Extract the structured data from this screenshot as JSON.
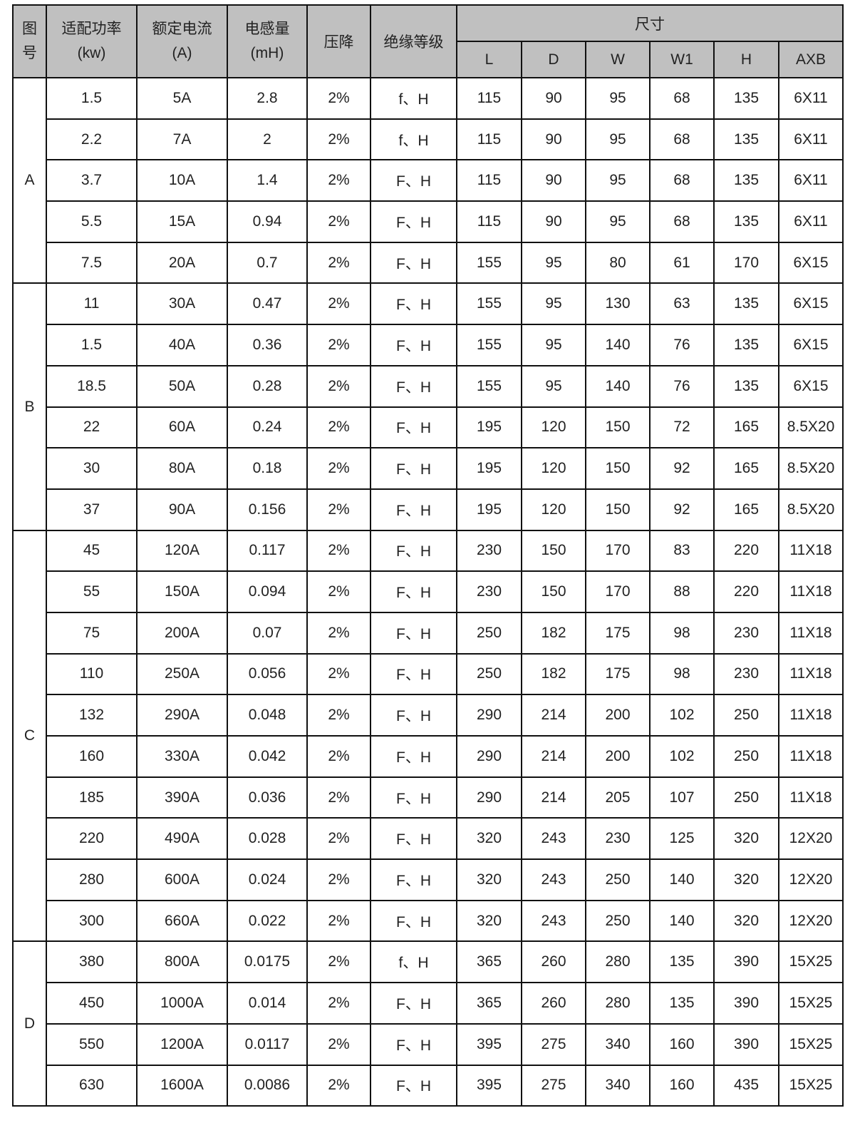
{
  "header": {
    "fig": "图号",
    "fig_line1": "图",
    "fig_line2": "号",
    "power": "适配功率",
    "power_unit": "(kw)",
    "current": "额定电流",
    "current_unit": "(A)",
    "inductance": "电感量",
    "inductance_unit": "(mH)",
    "voltage_drop": "压降",
    "insulation": "绝缘等级",
    "dimensions": "尺寸",
    "dims": [
      "L",
      "D",
      "W",
      "W1",
      "H",
      "AXB"
    ]
  },
  "groups": [
    {
      "label": "A",
      "rows": [
        [
          "1.5",
          "5A",
          "2.8",
          "2%",
          "f、H",
          "115",
          "90",
          "95",
          "68",
          "135",
          "6X11"
        ],
        [
          "2.2",
          "7A",
          "2",
          "2%",
          "f、H",
          "115",
          "90",
          "95",
          "68",
          "135",
          "6X11"
        ],
        [
          "3.7",
          "10A",
          "1.4",
          "2%",
          "F、H",
          "115",
          "90",
          "95",
          "68",
          "135",
          "6X11"
        ],
        [
          "5.5",
          "15A",
          "0.94",
          "2%",
          "F、H",
          "115",
          "90",
          "95",
          "68",
          "135",
          "6X11"
        ],
        [
          "7.5",
          "20A",
          "0.7",
          "2%",
          "F、H",
          "155",
          "95",
          "80",
          "61",
          "170",
          "6X15"
        ]
      ]
    },
    {
      "label": "B",
      "rows": [
        [
          "11",
          "30A",
          "0.47",
          "2%",
          "F、H",
          "155",
          "95",
          "130",
          "63",
          "135",
          "6X15"
        ],
        [
          "1.5",
          "40A",
          "0.36",
          "2%",
          "F、H",
          "155",
          "95",
          "140",
          "76",
          "135",
          "6X15"
        ],
        [
          "18.5",
          "50A",
          "0.28",
          "2%",
          "F、H",
          "155",
          "95",
          "140",
          "76",
          "135",
          "6X15"
        ],
        [
          "22",
          "60A",
          "0.24",
          "2%",
          "F、H",
          "195",
          "120",
          "150",
          "72",
          "165",
          "8.5X20"
        ],
        [
          "30",
          "80A",
          "0.18",
          "2%",
          "F、H",
          "195",
          "120",
          "150",
          "92",
          "165",
          "8.5X20"
        ],
        [
          "37",
          "90A",
          "0.156",
          "2%",
          "F、H",
          "195",
          "120",
          "150",
          "92",
          "165",
          "8.5X20"
        ]
      ]
    },
    {
      "label": "C",
      "rows": [
        [
          "45",
          "120A",
          "0.117",
          "2%",
          "F、H",
          "230",
          "150",
          "170",
          "83",
          "220",
          "11X18"
        ],
        [
          "55",
          "150A",
          "0.094",
          "2%",
          "F、H",
          "230",
          "150",
          "170",
          "88",
          "220",
          "11X18"
        ],
        [
          "75",
          "200A",
          "0.07",
          "2%",
          "F、H",
          "250",
          "182",
          "175",
          "98",
          "230",
          "11X18"
        ],
        [
          "110",
          "250A",
          "0.056",
          "2%",
          "F、H",
          "250",
          "182",
          "175",
          "98",
          "230",
          "11X18"
        ],
        [
          "132",
          "290A",
          "0.048",
          "2%",
          "F、H",
          "290",
          "214",
          "200",
          "102",
          "250",
          "11X18"
        ],
        [
          "160",
          "330A",
          "0.042",
          "2%",
          "F、H",
          "290",
          "214",
          "200",
          "102",
          "250",
          "11X18"
        ],
        [
          "185",
          "390A",
          "0.036",
          "2%",
          "F、H",
          "290",
          "214",
          "205",
          "107",
          "250",
          "11X18"
        ],
        [
          "220",
          "490A",
          "0.028",
          "2%",
          "F、H",
          "320",
          "243",
          "230",
          "125",
          "320",
          "12X20"
        ],
        [
          "280",
          "600A",
          "0.024",
          "2%",
          "F、H",
          "320",
          "243",
          "250",
          "140",
          "320",
          "12X20"
        ],
        [
          "300",
          "660A",
          "0.022",
          "2%",
          "F、H",
          "320",
          "243",
          "250",
          "140",
          "320",
          "12X20"
        ]
      ]
    },
    {
      "label": "D",
      "rows": [
        [
          "380",
          "800A",
          "0.0175",
          "2%",
          "f、H",
          "365",
          "260",
          "280",
          "135",
          "390",
          "15X25"
        ],
        [
          "450",
          "1000A",
          "0.014",
          "2%",
          "F、H",
          "365",
          "260",
          "280",
          "135",
          "390",
          "15X25"
        ],
        [
          "550",
          "1200A",
          "0.0117",
          "2%",
          "F、H",
          "395",
          "275",
          "340",
          "160",
          "390",
          "15X25"
        ],
        [
          "630",
          "1600A",
          "0.0086",
          "2%",
          "F、H",
          "395",
          "275",
          "340",
          "160",
          "435",
          "15X25"
        ]
      ]
    }
  ]
}
